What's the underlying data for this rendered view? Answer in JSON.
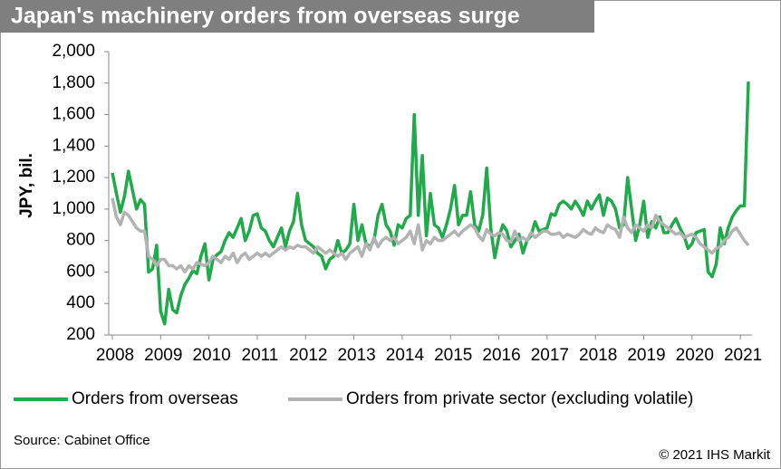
{
  "chart_data": {
    "type": "line",
    "title": "Japan's machinery orders from overseas surge",
    "y_label": "JPY, bil.",
    "categories": [
      "2008",
      null,
      null,
      null,
      null,
      null,
      null,
      null,
      null,
      null,
      null,
      null,
      "2009",
      null,
      null,
      null,
      null,
      null,
      null,
      null,
      null,
      null,
      null,
      null,
      "2010",
      null,
      null,
      null,
      null,
      null,
      null,
      null,
      null,
      null,
      null,
      null,
      "2011",
      null,
      null,
      null,
      null,
      null,
      null,
      null,
      null,
      null,
      null,
      null,
      "2012",
      null,
      null,
      null,
      null,
      null,
      null,
      null,
      null,
      null,
      null,
      null,
      "2013",
      null,
      null,
      null,
      null,
      null,
      null,
      null,
      null,
      null,
      null,
      null,
      "2014",
      null,
      null,
      null,
      null,
      null,
      null,
      null,
      null,
      null,
      null,
      null,
      "2015",
      null,
      null,
      null,
      null,
      null,
      null,
      null,
      null,
      null,
      null,
      null,
      "2016",
      null,
      null,
      null,
      null,
      null,
      null,
      null,
      null,
      null,
      null,
      null,
      "2017",
      null,
      null,
      null,
      null,
      null,
      null,
      null,
      null,
      null,
      null,
      null,
      "2018",
      null,
      null,
      null,
      null,
      null,
      null,
      null,
      null,
      null,
      null,
      null,
      "2019",
      null,
      null,
      null,
      null,
      null,
      null,
      null,
      null,
      null,
      null,
      null,
      "2020",
      null,
      null,
      null,
      null,
      null,
      null,
      null,
      null,
      null,
      null,
      null,
      "2021",
      null,
      null
    ],
    "series": [
      {
        "name": "Orders from overseas",
        "color": "#22a94b",
        "values": [
          1230,
          1100,
          980,
          1080,
          1240,
          1120,
          1000,
          1060,
          1030,
          600,
          620,
          770,
          350,
          270,
          490,
          360,
          340,
          450,
          520,
          560,
          610,
          590,
          700,
          780,
          550,
          680,
          710,
          730,
          800,
          850,
          820,
          880,
          940,
          800,
          860,
          960,
          970,
          880,
          860,
          800,
          760,
          820,
          880,
          760,
          860,
          920,
          1100,
          900,
          800,
          780,
          760,
          720,
          700,
          620,
          680,
          700,
          800,
          720,
          740,
          780,
          1030,
          800,
          900,
          780,
          760,
          800,
          960,
          1030,
          900,
          860,
          770,
          900,
          880,
          940,
          960,
          1600,
          960,
          1340,
          830,
          1100,
          900,
          880,
          820,
          900,
          1000,
          1150,
          900,
          960,
          960,
          1110,
          900,
          860,
          960,
          1260,
          880,
          690,
          820,
          900,
          860,
          760,
          800,
          840,
          720,
          800,
          830,
          920,
          860,
          870,
          880,
          970,
          960,
          1030,
          1050,
          1030,
          1000,
          1050,
          1010,
          960,
          1050,
          1000,
          1050,
          1090,
          960,
          1070,
          1050,
          1000,
          880,
          900,
          1200,
          1000,
          800,
          900,
          1050,
          820,
          920,
          880,
          950,
          850,
          850,
          900,
          940,
          880,
          830,
          750,
          780,
          850,
          860,
          870,
          600,
          570,
          650,
          880,
          780,
          880,
          950,
          990,
          1020,
          1020,
          1810
        ]
      },
      {
        "name": "Orders from private sector (excluding volatile)",
        "color": "#b3b3b3",
        "values": [
          1070,
          950,
          900,
          980,
          960,
          920,
          880,
          860,
          860,
          700,
          680,
          640,
          680,
          680,
          640,
          640,
          620,
          640,
          600,
          640,
          620,
          660,
          650,
          640,
          660,
          700,
          680,
          660,
          700,
          680,
          720,
          660,
          700,
          720,
          680,
          700,
          720,
          700,
          720,
          700,
          720,
          740,
          760,
          740,
          760,
          750,
          770,
          760,
          760,
          740,
          720,
          760,
          740,
          720,
          740,
          720,
          700,
          720,
          680,
          720,
          740,
          760,
          700,
          780,
          740,
          820,
          760,
          800,
          820,
          800,
          820,
          780,
          800,
          820,
          860,
          780,
          900,
          740,
          800,
          780,
          820,
          800,
          800,
          820,
          840,
          860,
          830,
          860,
          880,
          900,
          880,
          830,
          800,
          870,
          840,
          830,
          850,
          840,
          800,
          790,
          860,
          800,
          820,
          800,
          850,
          820,
          840,
          860,
          860,
          840,
          840,
          850,
          820,
          840,
          830,
          820,
          840,
          870,
          850,
          840,
          880,
          860,
          850,
          900,
          880,
          870,
          820,
          950,
          880,
          850,
          900,
          880,
          860,
          900,
          880,
          960,
          920,
          900,
          880,
          860,
          840,
          850,
          820,
          830,
          840,
          820,
          780,
          760,
          740,
          720,
          750,
          760,
          800,
          820,
          860,
          880,
          840,
          800,
          770
        ]
      }
    ],
    "ylim": [
      200,
      2000
    ],
    "yticks": [
      200,
      400,
      600,
      800,
      {
        "value": 1000,
        "label": "1,000"
      },
      {
        "value": 1200,
        "label": "1,200"
      },
      {
        "value": 1400,
        "label": "1,400"
      },
      {
        "value": 1600,
        "label": "1,600"
      },
      {
        "value": 1800,
        "label": "1,800"
      },
      {
        "value": 2000,
        "label": "2,000"
      }
    ],
    "grid": false
  },
  "source": "Source: Cabinet Office",
  "copyright": "© 2021 IHS Markit"
}
